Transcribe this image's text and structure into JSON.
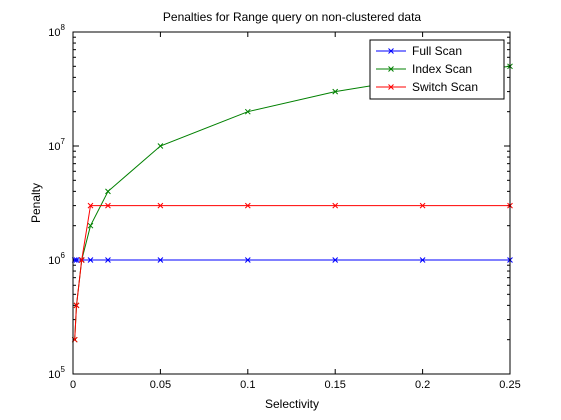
{
  "chart_data": {
    "type": "line",
    "title": "Penalties for Range query on non-clustered data",
    "xlabel": "Selectivity",
    "ylabel": "Penalty",
    "xlim": [
      0,
      0.25
    ],
    "ylim": [
      100000,
      100000000
    ],
    "yscale": "log",
    "grid": false,
    "legend_position": "top-right",
    "x_ticks": [
      {
        "value": 0,
        "label": "0"
      },
      {
        "value": 0.05,
        "label": "0.05"
      },
      {
        "value": 0.1,
        "label": "0.1"
      },
      {
        "value": 0.15,
        "label": "0.15"
      },
      {
        "value": 0.2,
        "label": "0.2"
      },
      {
        "value": 0.25,
        "label": "0.25"
      }
    ],
    "y_ticks": [
      {
        "value": 100000,
        "base": "10",
        "exp": "5"
      },
      {
        "value": 1000000,
        "base": "10",
        "exp": "6"
      },
      {
        "value": 10000000,
        "base": "10",
        "exp": "7"
      },
      {
        "value": 100000000,
        "base": "10",
        "exp": "8"
      }
    ],
    "series": [
      {
        "name": "Full Scan",
        "color": "#0000ff",
        "marker": "x",
        "x": [
          0.001,
          0.002,
          0.005,
          0.01,
          0.02,
          0.05,
          0.1,
          0.15,
          0.2,
          0.25
        ],
        "y": [
          1000000,
          1000000,
          1000000,
          1000000,
          1000000,
          1000000,
          1000000,
          1000000,
          1000000,
          1000000
        ]
      },
      {
        "name": "Index Scan",
        "color": "#008000",
        "marker": "x",
        "x": [
          0.001,
          0.002,
          0.005,
          0.01,
          0.02,
          0.05,
          0.1,
          0.15,
          0.2,
          0.25
        ],
        "y": [
          200000,
          400000,
          1000000,
          2000000,
          4000000,
          10000000,
          20000000,
          30000000,
          40000000,
          50000000
        ]
      },
      {
        "name": "Switch Scan",
        "color": "#ff0000",
        "marker": "x",
        "x": [
          0.001,
          0.002,
          0.005,
          0.01,
          0.02,
          0.05,
          0.1,
          0.15,
          0.2,
          0.25
        ],
        "y": [
          200000,
          400000,
          1000000,
          3000000,
          3000000,
          3000000,
          3000000,
          3000000,
          3000000,
          3000000
        ]
      }
    ]
  }
}
